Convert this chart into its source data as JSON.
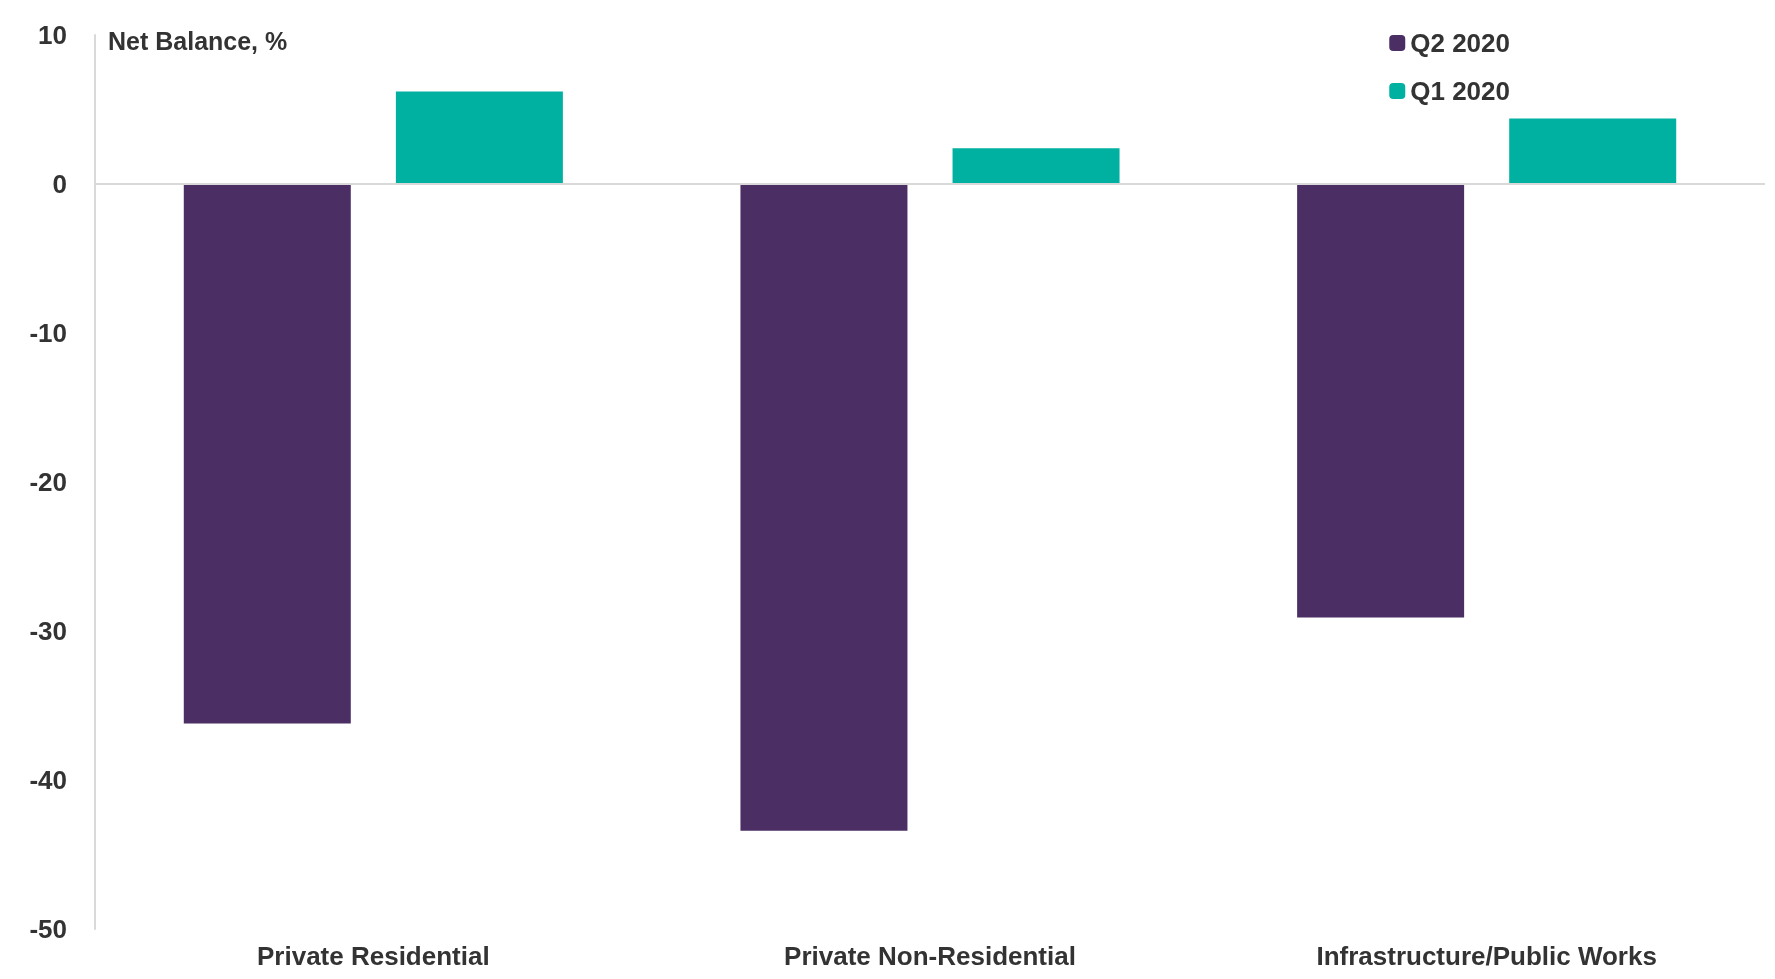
{
  "chart_data": {
    "type": "bar",
    "ylabel": "Net Balance, %",
    "categories": [
      "Private Residential",
      "Private Non-Residential",
      "Infrastructure/Public Works"
    ],
    "series": [
      {
        "name": "Q2 2020",
        "color": "#4b2e63",
        "values": [
          -36.2,
          -43.4,
          -29.1
        ]
      },
      {
        "name": "Q1 2020",
        "color": "#00b0a0",
        "values": [
          6.2,
          2.4,
          4.4
        ]
      }
    ],
    "ylim": [
      -50,
      10
    ],
    "yticks": [
      -50,
      -40,
      -30,
      -20,
      -10,
      0,
      10
    ],
    "ref_lines": [
      {
        "axis": "y",
        "value": 0,
        "color": "#d9d9d9"
      }
    ],
    "legend": "top right"
  }
}
